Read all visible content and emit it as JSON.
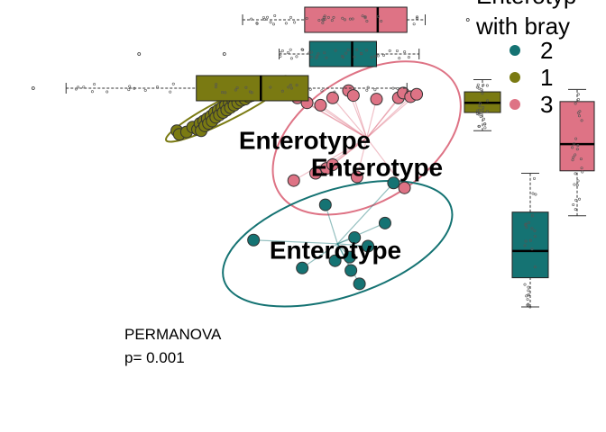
{
  "chart_data": {
    "type": "scatter",
    "title": "",
    "xlabel": "",
    "ylabel": "",
    "colors": {
      "1": "#7a7a12",
      "2": "#157373",
      "3": "#de7385"
    },
    "legend": {
      "title_lines": [
        "Enterotyp",
        "with bray"
      ],
      "placement": "top-right",
      "entries": [
        "2",
        "1",
        "3"
      ]
    },
    "annotation_lines": [
      "PERMANOVA",
      "p= 0.001"
    ],
    "series": [
      {
        "group": "1",
        "label": "Enterotype",
        "points": [
          [
            0.06,
            0.25
          ],
          [
            0.08,
            0.22
          ],
          [
            0.14,
            0.24
          ],
          [
            0.19,
            0.28
          ],
          [
            0.23,
            0.26
          ],
          [
            0.25,
            0.31
          ],
          [
            0.26,
            0.25
          ],
          [
            0.28,
            0.33
          ],
          [
            0.29,
            0.29
          ],
          [
            0.31,
            0.35
          ],
          [
            0.32,
            0.31
          ],
          [
            0.34,
            0.37
          ],
          [
            0.35,
            0.33
          ],
          [
            0.37,
            0.4
          ],
          [
            0.38,
            0.36
          ],
          [
            0.4,
            0.42
          ],
          [
            0.41,
            0.38
          ],
          [
            0.43,
            0.44
          ],
          [
            0.44,
            0.4
          ],
          [
            0.46,
            0.46
          ],
          [
            0.47,
            0.42
          ],
          [
            0.49,
            0.48
          ],
          [
            0.5,
            0.44
          ],
          [
            0.52,
            0.5
          ],
          [
            0.53,
            0.46
          ],
          [
            0.55,
            0.52
          ],
          [
            0.56,
            0.48
          ],
          [
            0.58,
            0.53
          ],
          [
            0.59,
            0.5
          ],
          [
            0.61,
            0.55
          ],
          [
            0.62,
            0.51
          ],
          [
            0.64,
            0.56
          ],
          [
            0.65,
            0.53
          ],
          [
            0.67,
            0.57
          ],
          [
            0.68,
            0.54
          ],
          [
            0.7,
            0.58
          ],
          [
            0.71,
            0.55
          ],
          [
            0.73,
            0.59
          ],
          [
            0.74,
            0.57
          ],
          [
            0.76,
            0.6
          ],
          [
            0.77,
            0.58
          ],
          [
            0.79,
            0.61
          ],
          [
            0.8,
            0.59
          ],
          [
            0.82,
            0.62
          ]
        ]
      },
      {
        "group": "3",
        "label": "Enterotype",
        "points": [
          [
            1.05,
            0.52
          ],
          [
            1.06,
            0.56
          ],
          [
            1.13,
            0.48
          ],
          [
            1.24,
            0.46
          ],
          [
            1.34,
            0.52
          ],
          [
            1.47,
            0.58
          ],
          [
            1.51,
            0.54
          ],
          [
            1.7,
            0.51
          ],
          [
            1.88,
            0.52
          ],
          [
            1.92,
            0.56
          ],
          [
            1.98,
            0.53
          ],
          [
            2.03,
            0.55
          ],
          [
            1.02,
            -0.16
          ],
          [
            1.2,
            -0.1
          ],
          [
            1.29,
            -0.06
          ],
          [
            1.34,
            -0.03
          ],
          [
            1.54,
            -0.13
          ],
          [
            1.93,
            -0.22
          ]
        ]
      },
      {
        "group": "2",
        "label": "Enterotype",
        "points": [
          [
            0.69,
            -0.65
          ],
          [
            1.09,
            -0.88
          ],
          [
            1.28,
            -0.36
          ],
          [
            1.36,
            -0.82
          ],
          [
            1.48,
            -0.79
          ],
          [
            1.49,
            -0.9
          ],
          [
            1.52,
            -0.63
          ],
          [
            1.56,
            -1.01
          ],
          [
            1.63,
            -0.7
          ],
          [
            1.77,
            -0.51
          ],
          [
            1.84,
            -0.18
          ]
        ]
      }
    ],
    "ellipses": [
      {
        "group": "1",
        "center": [
          0.48,
          0.43
        ],
        "semi_axes": [
          0.57,
          0.09
        ],
        "angle_deg": 27
      },
      {
        "group": "3",
        "center": [
          1.62,
          0.19
        ],
        "semi_axes": [
          0.85,
          0.52
        ],
        "angle_deg": 32
      },
      {
        "group": "2",
        "center": [
          1.38,
          -0.68
        ],
        "semi_axes": [
          0.98,
          0.44
        ],
        "angle_deg": 18
      }
    ],
    "marginal_boxplots": {
      "x_axis": [
        {
          "group": "3",
          "whisker_low": 0.6,
          "q1": 1.11,
          "median": 1.71,
          "q3": 1.95,
          "whisker_high": 2.1,
          "outliers": [
            2.45
          ]
        },
        {
          "group": "2",
          "whisker_low": 0.9,
          "q1": 1.15,
          "median": 1.5,
          "q3": 1.7,
          "whisker_high": 2.05,
          "outliers": [
            -0.25,
            0.45
          ]
        },
        {
          "group": "1",
          "whisker_low": -0.85,
          "q1": 0.22,
          "median": 0.75,
          "q3": 1.14,
          "whisker_high": 1.95,
          "outliers": [
            -1.65,
            -1.6,
            -1.55,
            -1.48,
            -1.12
          ]
        }
      ],
      "y_axis": [
        {
          "group": "1",
          "whisker_low": 0.25,
          "q1": 0.4,
          "median": 0.48,
          "q3": 0.57,
          "whisker_high": 0.67,
          "outliers": []
        },
        {
          "group": "3",
          "whisker_low": -0.45,
          "q1": -0.08,
          "median": 0.14,
          "q3": 0.49,
          "whisker_high": 0.59,
          "outliers": []
        },
        {
          "group": "2",
          "whisker_low": -1.2,
          "q1": -0.96,
          "median": -0.74,
          "q3": -0.42,
          "whisker_high": -0.1,
          "outliers": []
        }
      ]
    }
  }
}
